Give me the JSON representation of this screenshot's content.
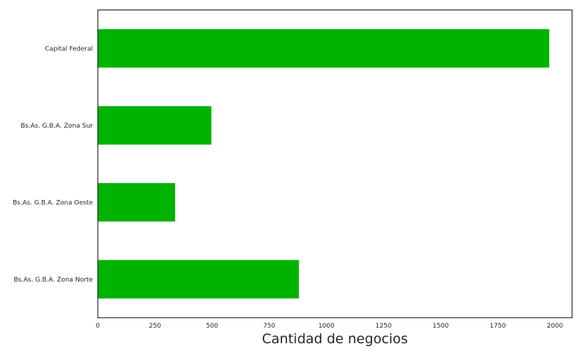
{
  "chart_data": {
    "type": "bar",
    "orientation": "horizontal",
    "categories": [
      "Capital Federal",
      "Bs.As. G.B.A. Zona Sur",
      "Bs.As. G.B.A. Zona Oeste",
      "Bs.As. G.B.A. Zona Norte"
    ],
    "values": [
      1975,
      497,
      338,
      880
    ],
    "xlabel": "Cantidad de negocios",
    "ylabel": "",
    "xlim": [
      0,
      2075
    ],
    "x_ticks": [
      0,
      250,
      500,
      750,
      1000,
      1250,
      1500,
      1750,
      2000
    ],
    "bar_color": "#00b300",
    "grid": false,
    "legend": "none"
  }
}
